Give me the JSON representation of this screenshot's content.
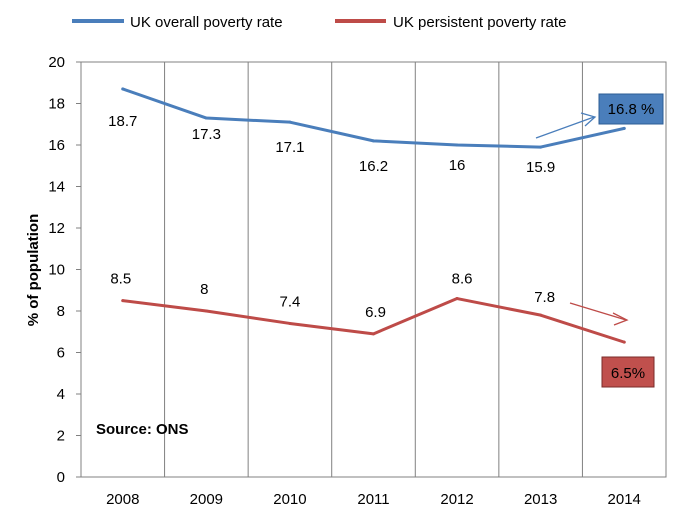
{
  "chart_data": {
    "type": "line",
    "categories": [
      "2008",
      "2009",
      "2010",
      "2011",
      "2012",
      "2013",
      "2014"
    ],
    "ylabel": "% of population",
    "ylim": [
      0,
      20
    ],
    "yticks": [
      0,
      2,
      4,
      6,
      8,
      10,
      12,
      14,
      16,
      18,
      20
    ],
    "grid": "vertical",
    "legend_position": "top",
    "series": [
      {
        "name": "UK overall poverty rate",
        "color": "#4a7ebb",
        "values": [
          18.7,
          17.3,
          17.1,
          16.2,
          16.0,
          15.9,
          16.8
        ],
        "labels": [
          "18.7",
          "17.3",
          "17.1",
          "16.2",
          "16",
          "15.9",
          ""
        ]
      },
      {
        "name": "UK persistent poverty rate",
        "color": "#be4b48",
        "values": [
          8.5,
          8.0,
          7.4,
          6.9,
          8.6,
          7.8,
          6.5
        ],
        "labels": [
          "8.5",
          "8",
          "7.4",
          "6.9",
          "8.6",
          "7.8",
          ""
        ]
      }
    ],
    "annotations": [
      {
        "text": "16.8 %",
        "series": 0,
        "fill": "#4a7ebb"
      },
      {
        "text": "6.5%",
        "series": 1,
        "fill": "#c0504d"
      },
      {
        "text": "Source: ONS"
      }
    ]
  }
}
